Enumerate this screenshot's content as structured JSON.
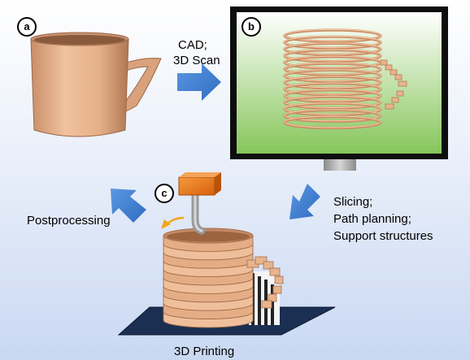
{
  "panels": {
    "a": {
      "badge": "a"
    },
    "b": {
      "badge": "b"
    },
    "c": {
      "badge": "c"
    }
  },
  "steps": {
    "cad_line1": "CAD;",
    "cad_line2": "3D Scan",
    "slicing_line1": "Slicing;",
    "slicing_line2": "Path planning;",
    "slicing_line3": "Support structures",
    "postprocessing": "Postprocessing",
    "printing": "3D Printing"
  },
  "colors": {
    "arrow": "#3f7ed4",
    "mug": "#e8b48e",
    "mug_dark": "#b57a55",
    "screen_top": "#ffffff",
    "screen_bottom": "#8cc85c",
    "build_plate": "#1b2f52",
    "nozzle_head": "#f07818",
    "support": "#222222"
  }
}
